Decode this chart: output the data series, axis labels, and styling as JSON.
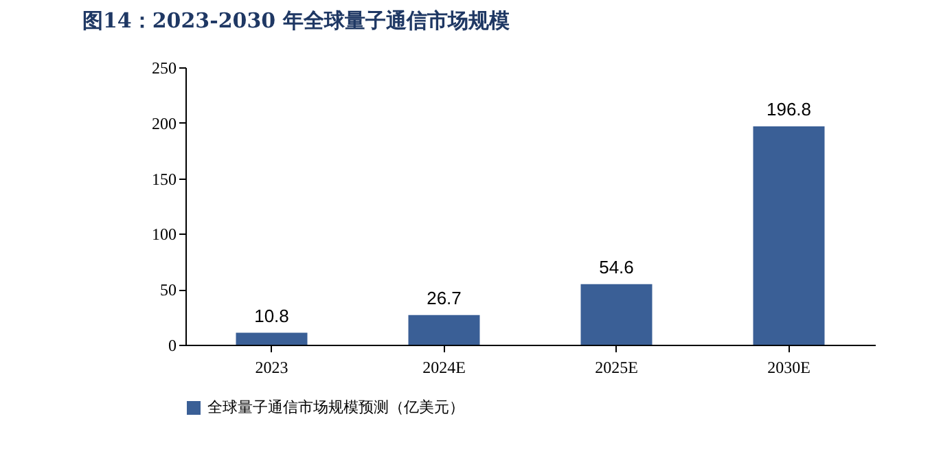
{
  "chart_data": {
    "type": "bar",
    "title": "图14：2023-2030 年全球量子通信市场规模",
    "categories": [
      "2023",
      "2024E",
      "2025E",
      "2030E"
    ],
    "series": [
      {
        "name": "全球量子通信市场规模预测（亿美元）",
        "color": "#3a5f96",
        "values": [
          10.8,
          26.7,
          54.6,
          196.8
        ]
      }
    ],
    "ylim": [
      0,
      250
    ],
    "yticks": [
      0,
      50,
      100,
      150,
      200,
      250
    ],
    "data_labels": true,
    "legend": "bottom"
  }
}
